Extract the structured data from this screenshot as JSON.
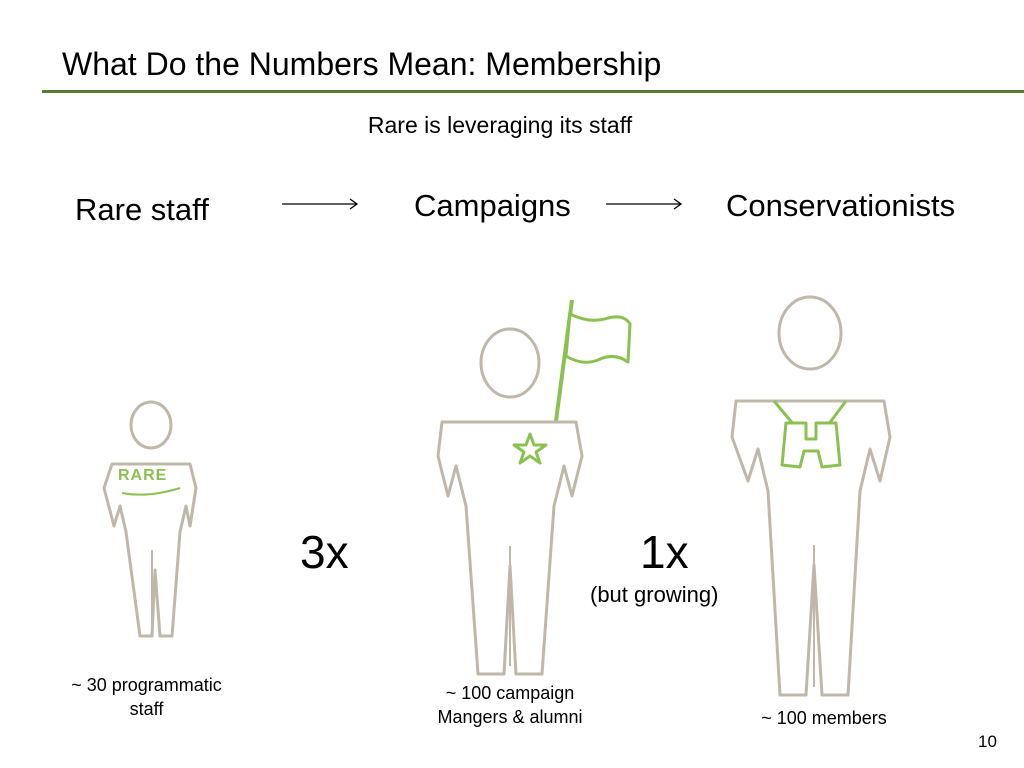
{
  "slide": {
    "title": "What Do the Numbers Mean: Membership",
    "subtitle": "Rare is leveraging its staff",
    "page_number": "10",
    "accent_color": "#5a7a33",
    "figure_color": "#bfb8aa",
    "highlight_color": "#8cc152"
  },
  "columns": {
    "staff": {
      "heading": "Rare staff",
      "caption_line1": "~ 30 programmatic",
      "caption_line2": "staff",
      "badge": "RARE",
      "icon": "person-with-rare-logo-icon"
    },
    "campaigns": {
      "heading": "Campaigns",
      "caption_line1": "~ 100 campaign",
      "caption_line2": "Mangers & alumni",
      "icon": "person-with-flag-and-star-icon"
    },
    "conservationists": {
      "heading": "Conservationists",
      "caption_line1": "~ 100 members",
      "icon": "person-with-binoculars-icon"
    }
  },
  "ratios": {
    "first": "3x",
    "second": "1x",
    "second_note": "(but growing)"
  }
}
